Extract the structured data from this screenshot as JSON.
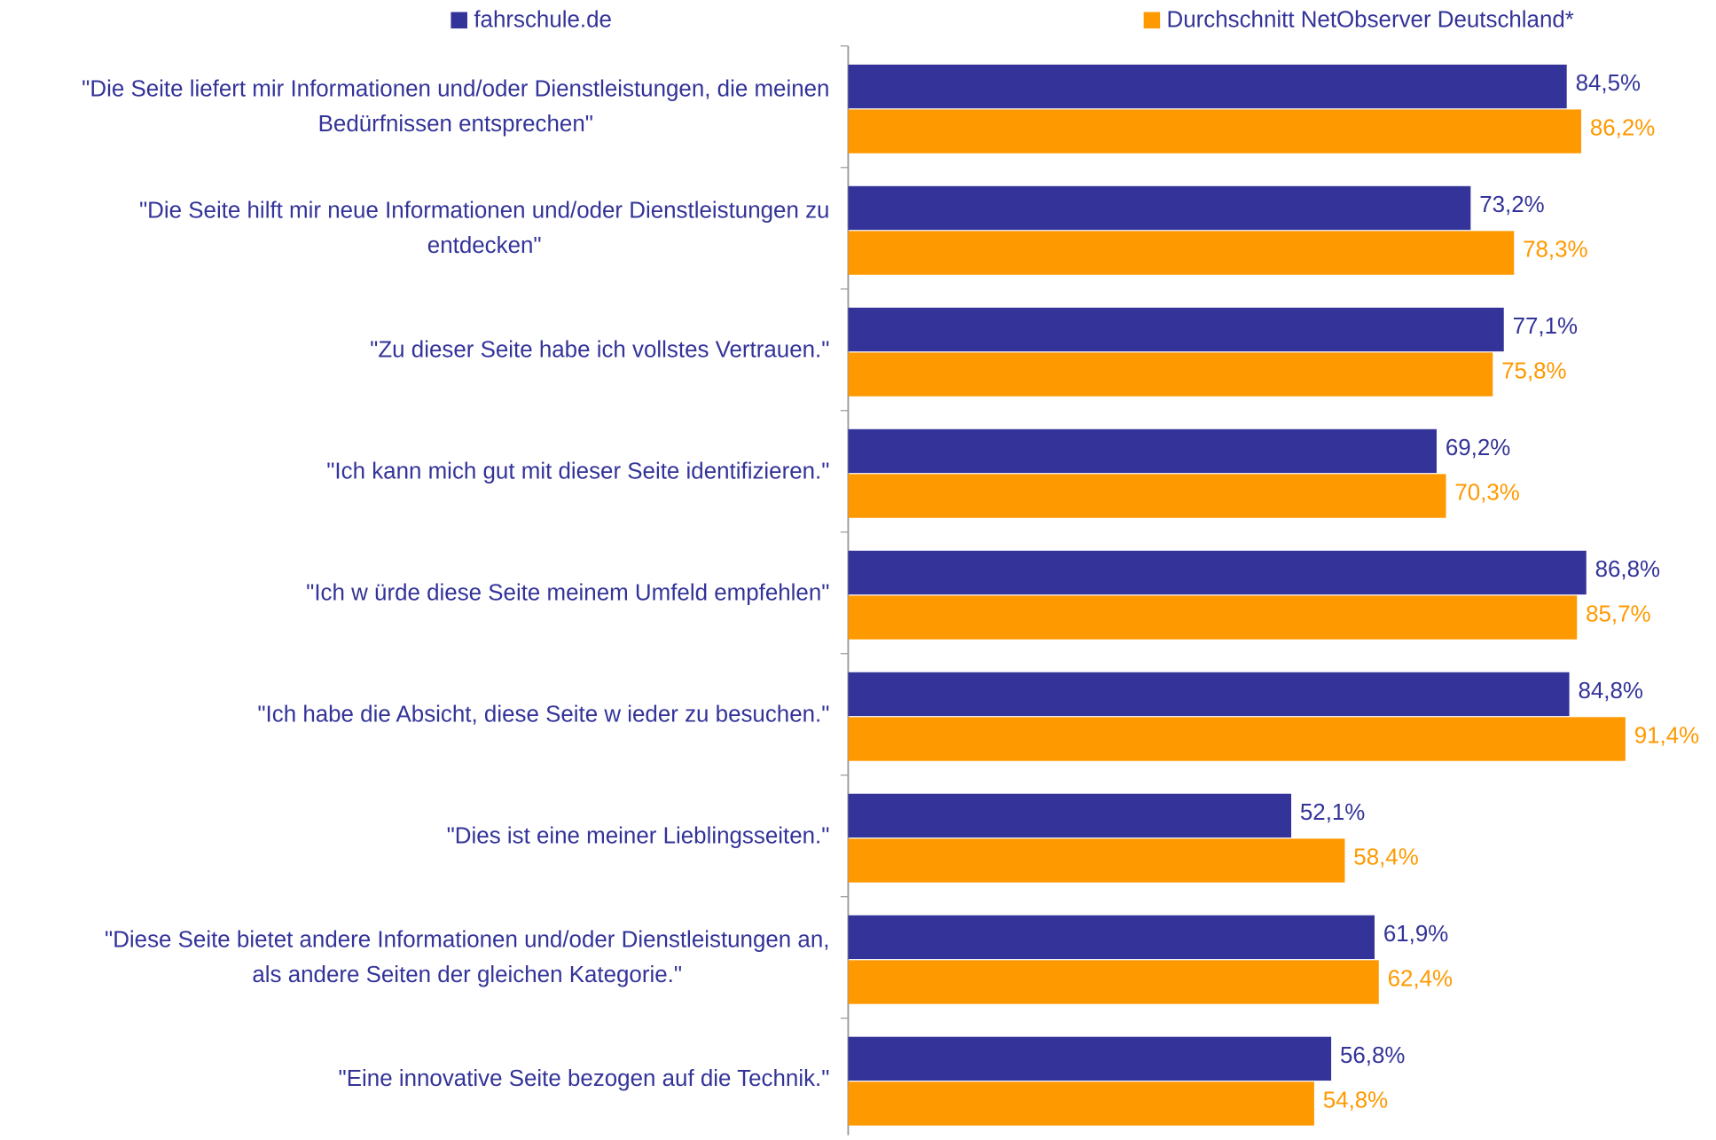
{
  "chart_data": {
    "type": "bar",
    "orientation": "horizontal",
    "categories": [
      "\"Die Seite liefert mir Informationen und/oder Dienstleistungen, die meinen\nBedürfnissen entsprechen\"",
      "\"Die Seite hilft mir neue Informationen und/oder Dienstleistungen zu\nentdecken\"",
      "\"Zu dieser Seite habe ich vollstes Vertrauen.\"",
      "\"Ich kann mich gut mit dieser Seite identifizieren.\"",
      "\"Ich w ürde diese Seite meinem Umfeld empfehlen\"",
      "\"Ich habe die Absicht, diese Seite w ieder zu besuchen.\"",
      "\"Dies ist eine meiner Lieblingsseiten.\"",
      "\"Diese Seite bietet andere Informationen und/oder Dienstleistungen an,\nals andere Seiten der gleichen Kategorie.\"",
      "\"Eine innovative Seite bezogen auf die Technik.\""
    ],
    "series": [
      {
        "name": "fahrschule.de",
        "color": "#333399",
        "values": [
          84.5,
          73.2,
          77.1,
          69.2,
          86.8,
          84.8,
          52.1,
          61.9,
          56.8
        ],
        "value_labels": [
          "84,5%",
          "73,2%",
          "77,1%",
          "69,2%",
          "86,8%",
          "84,8%",
          "52,1%",
          "61,9%",
          "56,8%"
        ]
      },
      {
        "name": "Durchschnitt NetObserver Deutschland*",
        "color": "#ff9900",
        "values": [
          86.2,
          78.3,
          75.8,
          70.3,
          85.7,
          91.4,
          58.4,
          62.4,
          54.8
        ],
        "value_labels": [
          "86,2%",
          "78,3%",
          "75,8%",
          "70,3%",
          "85,7%",
          "91,4%",
          "58,4%",
          "62,4%",
          "54,8%"
        ]
      }
    ],
    "xlim": [
      0,
      100
    ]
  }
}
